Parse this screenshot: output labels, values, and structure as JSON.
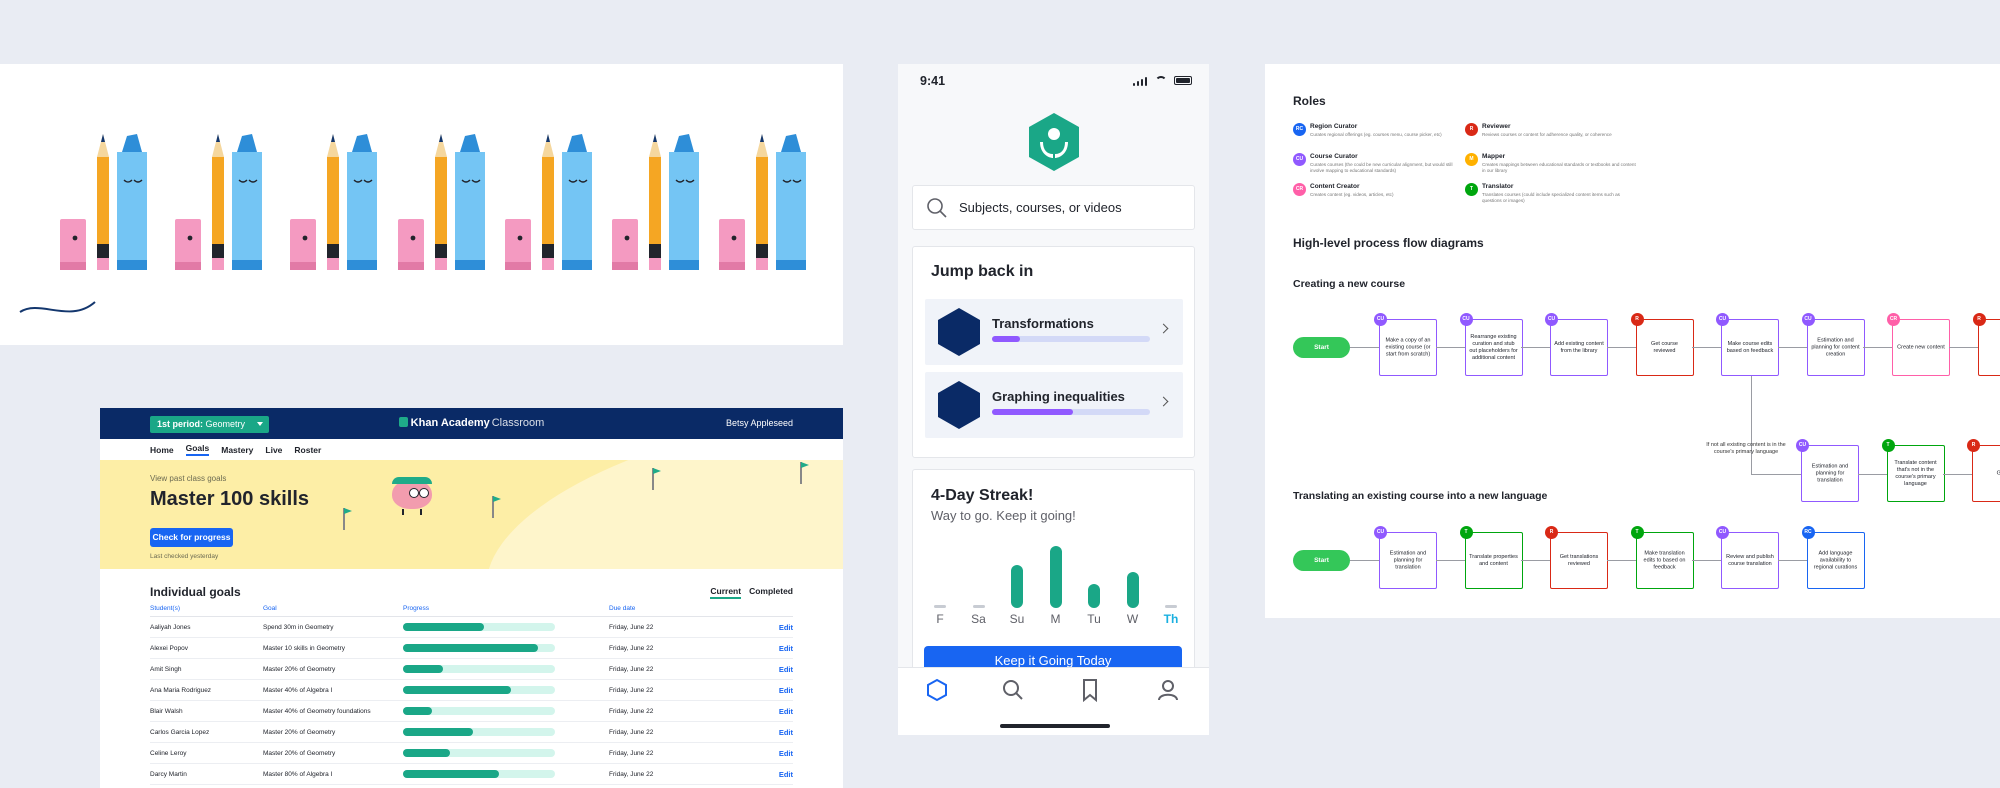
{
  "colors": {
    "ka_green": "#1aa787",
    "ka_blue": "#1865f2",
    "ka_navy": "#0a2a66",
    "purple": "#9059ff",
    "role_region_curator": "#1865f2",
    "role_course_curator": "#9059ff",
    "role_content_creator": "#ff5fa8",
    "role_reviewer": "#d92916",
    "role_mapper": "#ffb100",
    "role_translator": "#00a60e"
  },
  "classroom": {
    "period_prefix": "1st period:",
    "period_name": "Geometry",
    "brand": "Khan Academy",
    "brand_sub": "Classroom",
    "user": "Betsy Appleseed",
    "nav": [
      "Home",
      "Goals",
      "Mastery",
      "Live",
      "Roster"
    ],
    "nav_active": "Goals",
    "hero": {
      "past_link": "View past class goals",
      "title": "Master 100 skills",
      "button": "Check for progress",
      "last_checked": "Last checked yesterday"
    },
    "goals": {
      "title": "Individual goals",
      "tab_current": "Current",
      "tab_completed": "Completed",
      "columns": [
        "Student(s)",
        "Goal",
        "Progress",
        "Due date"
      ],
      "edit_label": "Edit",
      "rows": [
        {
          "student": "Aaliyah Jones",
          "goal": "Spend 30m in Geometry",
          "progress": 0.53,
          "due": "Friday, June 22"
        },
        {
          "student": "Alexei Popov",
          "goal": "Master 10 skills in Geometry",
          "progress": 0.89,
          "due": "Friday, June 22"
        },
        {
          "student": "Amit Singh",
          "goal": "Master 20% of Geometry",
          "progress": 0.26,
          "due": "Friday, June 22"
        },
        {
          "student": "Ana Maria Rodriguez",
          "goal": "Master 40% of Algebra I",
          "progress": 0.71,
          "due": "Friday, June 22"
        },
        {
          "student": "Blair Walsh",
          "goal": "Master 40% of Geometry foundations",
          "progress": 0.19,
          "due": "Friday, June 22"
        },
        {
          "student": "Carlos Garcia Lopez",
          "goal": "Master 20% of Geometry",
          "progress": 0.46,
          "due": "Friday, June 22"
        },
        {
          "student": "Celine Leroy",
          "goal": "Master 20% of Geometry",
          "progress": 0.31,
          "due": "Friday, June 22"
        },
        {
          "student": "Darcy Martin",
          "goal": "Master 80% of Algebra I",
          "progress": 0.63,
          "due": "Friday, June 22"
        }
      ]
    }
  },
  "phone": {
    "time": "9:41",
    "search_placeholder": "Subjects, courses, or videos",
    "jump_title": "Jump back in",
    "courses": [
      {
        "name": "Transformations",
        "progress": 0.18
      },
      {
        "name": "Graphing inequalities",
        "progress": 0.51
      }
    ],
    "streak_title": "4-Day Streak!",
    "streak_sub": "Way to go. Keep it going!",
    "days": [
      {
        "label": "F",
        "level": 0,
        "today": false
      },
      {
        "label": "Sa",
        "level": 0,
        "today": false
      },
      {
        "label": "Su",
        "level": 0.7,
        "today": false
      },
      {
        "label": "M",
        "level": 1.0,
        "today": false
      },
      {
        "label": "Tu",
        "level": 0.38,
        "today": false
      },
      {
        "label": "W",
        "level": 0.58,
        "today": false
      },
      {
        "label": "Th",
        "level": 0,
        "today": true
      }
    ],
    "cta": "Keep it Going Today",
    "tabs": [
      "home-icon",
      "search-icon",
      "bookmark-icon",
      "profile-icon"
    ]
  },
  "doc": {
    "roles_title": "Roles",
    "roles": [
      {
        "code": "RC",
        "name": "Region Curator",
        "desc": "Curates regional offerings (eg. courses menu, course picker, etc)",
        "color": "#1865f2"
      },
      {
        "code": "CU",
        "name": "Course Curator",
        "desc": "Curates courses (the could be new curricular alignment, but would still involve mapping to educational standards)",
        "color": "#9059ff"
      },
      {
        "code": "CR",
        "name": "Content Creator",
        "desc": "Creates content (eg. videos, articles, etc)",
        "color": "#ff5fa8"
      },
      {
        "code": "R",
        "name": "Reviewer",
        "desc": "Reviews courses or content for adherence quality, or coherence",
        "color": "#d92916"
      },
      {
        "code": "M",
        "name": "Mapper",
        "desc": "Creates mappings between educational standards or textbooks and content in our library",
        "color": "#ffb100"
      },
      {
        "code": "T",
        "name": "Translator",
        "desc": "Translates courses (could include specialized content items such as questions or images)",
        "color": "#00a60e"
      }
    ],
    "flow_title": "High-level process flow diagrams",
    "flow1_title": "Creating a new course",
    "flow2_title": "Translating an existing course into a new language",
    "start_label": "Start",
    "flow1_nodes": [
      {
        "code": "CU",
        "text": "Make a copy of an existing course (or start from scratch)",
        "color": "#9059ff"
      },
      {
        "code": "CU",
        "text": "Rearrange existing curation and stub out placeholders for additional content",
        "color": "#9059ff"
      },
      {
        "code": "CU",
        "text": "Add existing content from the library",
        "color": "#9059ff"
      },
      {
        "code": "R",
        "text": "Get course reviewed",
        "color": "#d92916"
      },
      {
        "code": "CU",
        "text": "Make course edits based on feedback",
        "color": "#9059ff"
      },
      {
        "code": "CU",
        "text": "Estimation and planning for content creation",
        "color": "#9059ff"
      },
      {
        "code": "CR",
        "text": "Create new content",
        "color": "#ff5fa8"
      },
      {
        "code": "R",
        "text": "Get",
        "color": "#d92916"
      }
    ],
    "flow1_branch_note": "If not all existing content is in the course's primary language",
    "flow1_branch": [
      {
        "code": "CU",
        "text": "Estimation and planning for translation",
        "color": "#9059ff"
      },
      {
        "code": "T",
        "text": "Translate content that's not in the course's primary language",
        "color": "#00a60e"
      },
      {
        "code": "R",
        "text": "Get",
        "color": "#d92916"
      }
    ],
    "flow2_nodes": [
      {
        "code": "CU",
        "text": "Estimation and planning for translation",
        "color": "#9059ff"
      },
      {
        "code": "T",
        "text": "Translate properties and content",
        "color": "#00a60e"
      },
      {
        "code": "R",
        "text": "Get translations reviewed",
        "color": "#d92916"
      },
      {
        "code": "T",
        "text": "Make translation edits to based on feedback",
        "color": "#00a60e"
      },
      {
        "code": "CU",
        "text": "Review and publish course translation",
        "color": "#9059ff"
      },
      {
        "code": "RC",
        "text": "Add language availability to regional curations",
        "color": "#1865f2"
      }
    ]
  }
}
